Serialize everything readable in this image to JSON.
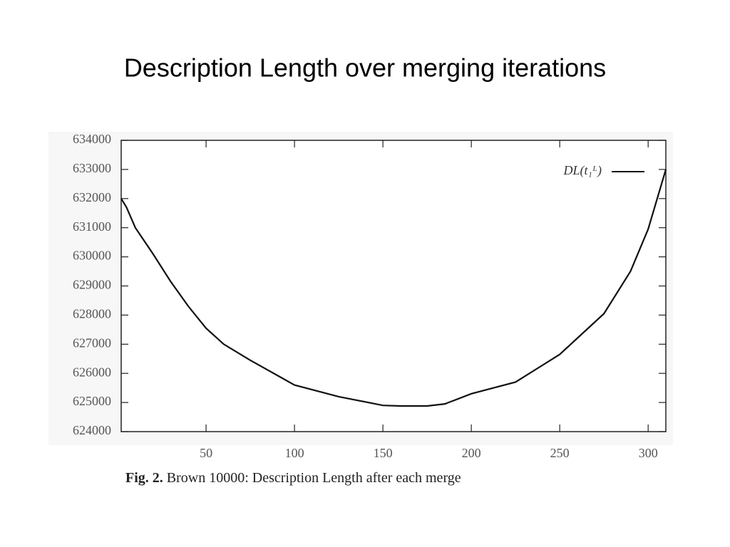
{
  "chart_data": {
    "type": "line",
    "title": "Description Length over merging iterations",
    "caption_label": "Fig. 2.",
    "caption": "Brown 10000: Description Length after each merge",
    "x": [
      2,
      5,
      10,
      20,
      30,
      40,
      50,
      60,
      75,
      100,
      125,
      150,
      160,
      175,
      185,
      200,
      225,
      250,
      275,
      290,
      300,
      310
    ],
    "series": [
      {
        "name": "DL(t₁ᴸ)",
        "color": "#111111",
        "values": [
          632000,
          631700,
          631000,
          630100,
          629150,
          628300,
          627550,
          627000,
          626450,
          625600,
          625200,
          624900,
          624880,
          624880,
          624950,
          625300,
          625700,
          626650,
          628050,
          629500,
          630950,
          633000
        ]
      }
    ],
    "xlim": [
      2,
      310
    ],
    "ylim": [
      624000,
      634000
    ],
    "xticks": [
      50,
      100,
      150,
      200,
      250,
      300
    ],
    "yticks": [
      624000,
      625000,
      626000,
      627000,
      628000,
      629000,
      630000,
      631000,
      632000,
      633000,
      634000
    ],
    "grid": false,
    "legend": "top-right"
  }
}
